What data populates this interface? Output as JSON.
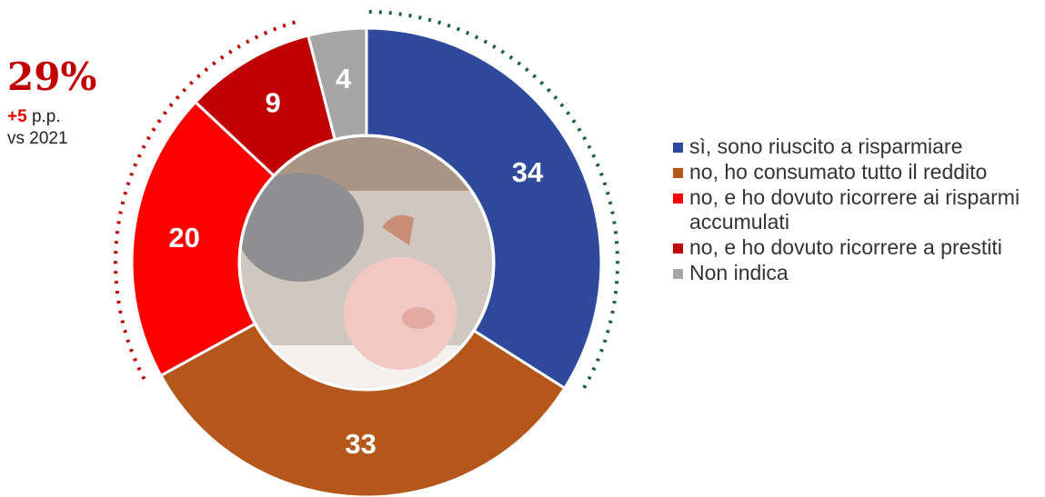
{
  "chart_data": {
    "type": "donut",
    "categories": [
      "sì, sono riuscito a risparmiare",
      "no, ho consumato tutto il reddito",
      "no, e ho dovuto ricorrere ai risparmi accumulati",
      "no, e ho dovuto ricorrere a prestiti",
      "Non indica"
    ],
    "values": [
      34,
      33,
      20,
      9,
      4
    ],
    "colors": [
      "#2f4a9c",
      "#b5561a",
      "#ff0000",
      "#c00000",
      "#a6a6a6"
    ],
    "legend": "right",
    "annotation": {
      "headline": "29%",
      "change": "+5",
      "change_unit": "p.p.",
      "comparison": "vs 2021"
    }
  }
}
